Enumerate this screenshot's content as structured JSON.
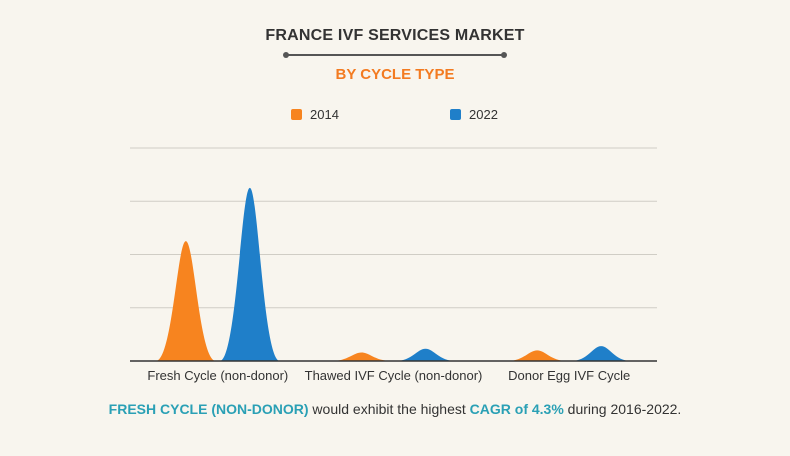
{
  "header": {
    "title": "FRANCE IVF SERVICES MARKET",
    "subtitle": "BY CYCLE TYPE"
  },
  "footnote": {
    "highlight_segment": "FRESH CYCLE (NON-DONOR)",
    "text_segment_1": " would exhibit the highest ",
    "highlight_cagr": "CAGR of 4.3%",
    "text_segment_2": " during 2016-2022."
  },
  "colors": {
    "series_2014": "#f7841f",
    "series_2022": "#1f7fc9",
    "accent_text": "#2aa0b5",
    "grid": "#d0cdc5",
    "axis": "#333333"
  },
  "chart_data": {
    "type": "area",
    "title": "FRANCE IVF SERVICES MARKET",
    "subtitle": "BY CYCLE TYPE",
    "categories": [
      "Fresh Cycle (non-donor)",
      "Thawed IVF Cycle (non-donor)",
      "Donor Egg IVF Cycle"
    ],
    "series": [
      {
        "name": "2014",
        "values": [
          22.5,
          1.6,
          2.0
        ]
      },
      {
        "name": "2022",
        "values": [
          32.5,
          2.3,
          2.8
        ]
      }
    ],
    "ylim": [
      0,
      41.5
    ],
    "y_gridlines": [
      10,
      20,
      30,
      40
    ],
    "y_tick_labels_shown": false,
    "grid": true,
    "legend_position": "top-center"
  }
}
